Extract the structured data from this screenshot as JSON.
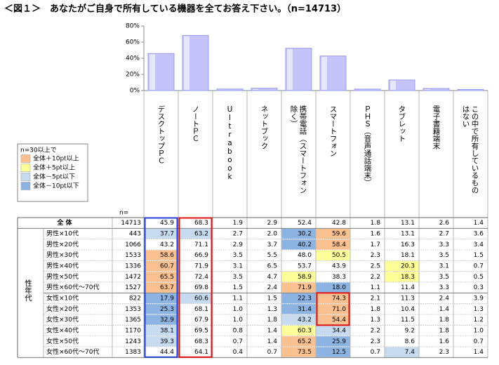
{
  "title": "＜図１＞　あなたがご自身で所有している機器を全てお答え下さい。（n=14713）",
  "chart_data": {
    "type": "bar",
    "categories": [
      [
        "デスクトップＰＣ"
      ],
      [
        "ノートＰＣ"
      ],
      [
        "Ultrabook"
      ],
      [
        "ネットブック"
      ],
      [
        "携帯電話（スマートフォン",
        "除く）"
      ],
      [
        "スマートフォン"
      ],
      [
        "ＰＨＳ（音声通話端末）"
      ],
      [
        "タブレット"
      ],
      [
        "電子書籍端末"
      ],
      [
        "この中で所有しているもの",
        "はない"
      ]
    ],
    "values": [
      45.9,
      68.3,
      1.9,
      2.9,
      52.4,
      42.8,
      1.8,
      13.1,
      2.6,
      1.4
    ],
    "color": "#c4c4fb",
    "ylim": [
      0,
      80
    ],
    "yticks": [
      {
        "value": 0,
        "label": "0%"
      },
      {
        "value": 20,
        "label": "20%"
      },
      {
        "value": 40,
        "label": "40%"
      },
      {
        "value": 60,
        "label": "60%"
      },
      {
        "value": 80,
        "label": "80%"
      }
    ]
  },
  "legend": {
    "title": "n=30以上で",
    "items": [
      {
        "label": "全体＋10pt以上",
        "color": "#fac090"
      },
      {
        "label": "全体＋5pt以上",
        "color": "#ffff99"
      },
      {
        "label": "全体－5pt以下",
        "color": "#c6dbf0"
      },
      {
        "label": "全体－10pt以下",
        "color": "#8db3e2"
      }
    ]
  },
  "table": {
    "n_header": "n=",
    "group_label": "性年代",
    "rows": [
      {
        "label": "全 体",
        "n": 14713,
        "values": [
          "45.9",
          "68.3",
          "1.9",
          "2.9",
          "52.4",
          "42.8",
          "1.8",
          "13.1",
          "2.6",
          "1.4"
        ],
        "colors": [
          null,
          null,
          null,
          null,
          null,
          null,
          null,
          null,
          null,
          null
        ]
      },
      {
        "label": "男性×10代",
        "n": 443,
        "values": [
          "37.7",
          "63.2",
          "2.7",
          "2.0",
          "30.2",
          "59.6",
          "1.6",
          "13.1",
          "2.7",
          "3.6"
        ],
        "colors": [
          2,
          2,
          null,
          null,
          3,
          0,
          null,
          null,
          null,
          null
        ]
      },
      {
        "label": "男性×20代",
        "n": 1066,
        "values": [
          "43.2",
          "71.1",
          "2.9",
          "3.7",
          "40.2",
          "58.4",
          "1.7",
          "16.3",
          "3.3",
          "3.4"
        ],
        "colors": [
          null,
          null,
          null,
          null,
          3,
          0,
          null,
          null,
          null,
          null
        ]
      },
      {
        "label": "男性×30代",
        "n": 1533,
        "values": [
          "58.6",
          "66.9",
          "3.5",
          "5.5",
          "48.0",
          "50.5",
          "2.3",
          "18.1",
          "3.5",
          "1.5"
        ],
        "colors": [
          0,
          null,
          null,
          null,
          null,
          1,
          null,
          null,
          null,
          null
        ]
      },
      {
        "label": "男性×40代",
        "n": 1336,
        "values": [
          "60.7",
          "71.9",
          "3.1",
          "6.5",
          "53.7",
          "43.9",
          "2.5",
          "20.3",
          "3.1",
          "0.7"
        ],
        "colors": [
          0,
          null,
          null,
          null,
          null,
          null,
          null,
          1,
          null,
          null
        ]
      },
      {
        "label": "男性×50代",
        "n": 1472,
        "values": [
          "65.5",
          "72.4",
          "3.5",
          "4.7",
          "58.9",
          "38.3",
          "2.2",
          "18.3",
          "3.5",
          "0.5"
        ],
        "colors": [
          0,
          null,
          null,
          null,
          1,
          null,
          null,
          1,
          null,
          null
        ]
      },
      {
        "label": "男性×60代～70代",
        "n": 1527,
        "values": [
          "63.7",
          "69.8",
          "1.5",
          "2.4",
          "71.9",
          "18.0",
          "1.1",
          "11.4",
          "3.3",
          "0.3"
        ],
        "colors": [
          0,
          null,
          null,
          null,
          0,
          3,
          null,
          null,
          null,
          null
        ]
      },
      {
        "label": "女性×10代",
        "n": 822,
        "values": [
          "17.9",
          "60.6",
          "1.1",
          "1.5",
          "22.3",
          "74.3",
          "2.1",
          "11.3",
          "2.4",
          "3.9"
        ],
        "colors": [
          3,
          2,
          null,
          null,
          3,
          0,
          null,
          null,
          null,
          null
        ]
      },
      {
        "label": "女性×20代",
        "n": 1353,
        "values": [
          "25.3",
          "68.1",
          "1.0",
          "1.3",
          "31.4",
          "71.0",
          "1.8",
          "10.4",
          "1.4",
          "1.3"
        ],
        "colors": [
          3,
          null,
          null,
          null,
          3,
          0,
          null,
          null,
          null,
          null
        ]
      },
      {
        "label": "女性×30代",
        "n": 1365,
        "values": [
          "32.9",
          "67.9",
          "1.0",
          "1.8",
          "43.2",
          "54.4",
          "1.3",
          "11.5",
          "1.8",
          "1.2"
        ],
        "colors": [
          3,
          null,
          null,
          null,
          2,
          0,
          null,
          null,
          null,
          null
        ]
      },
      {
        "label": "女性×40代",
        "n": 1170,
        "values": [
          "38.1",
          "69.5",
          "0.8",
          "1.4",
          "60.3",
          "34.4",
          "2.2",
          "9.2",
          "1.8",
          "1.0"
        ],
        "colors": [
          2,
          null,
          null,
          null,
          1,
          2,
          null,
          null,
          null,
          null
        ]
      },
      {
        "label": "女性×50代",
        "n": 1243,
        "values": [
          "39.3",
          "68.3",
          "0.7",
          "1.4",
          "65.2",
          "25.9",
          "2.3",
          "8.6",
          "1.6",
          "0.7"
        ],
        "colors": [
          2,
          null,
          null,
          null,
          0,
          3,
          null,
          null,
          null,
          null
        ]
      },
      {
        "label": "女性×60代～70代",
        "n": 1383,
        "values": [
          "44.4",
          "64.1",
          "0.4",
          "0.7",
          "73.5",
          "12.5",
          "0.7",
          "7.4",
          "2.3",
          "1.4"
        ],
        "colors": [
          null,
          null,
          null,
          null,
          0,
          3,
          null,
          2,
          null,
          null
        ]
      }
    ]
  }
}
